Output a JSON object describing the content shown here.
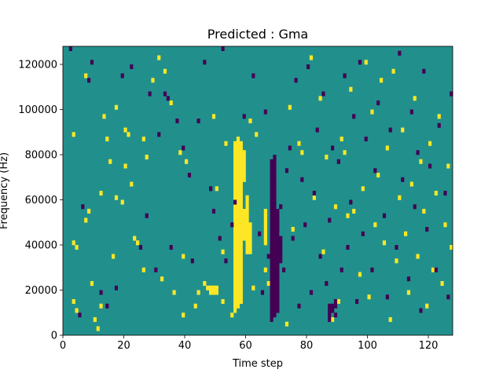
{
  "chart_data": {
    "type": "heatmap",
    "title": "Predicted : Gma",
    "xlabel": "Time step",
    "ylabel": "Frequency (Hz)",
    "xlim": [
      0,
      128
    ],
    "ylim": [
      0,
      128000
    ],
    "xticks": [
      "0",
      "20",
      "40",
      "60",
      "80",
      "100",
      "120"
    ],
    "yticks": [
      "0",
      "20000",
      "40000",
      "60000",
      "80000",
      "100000",
      "120000"
    ],
    "grid": false,
    "colormap": "viridis",
    "colors": {
      "background": "#21908d",
      "high": "#fde725",
      "low": "#440154"
    },
    "n_time_steps": 128,
    "n_freq_bins": 64,
    "bin_width_hz": 2000,
    "cells_high": [
      [
        3,
        7
      ],
      [
        3,
        20
      ],
      [
        3,
        44
      ],
      [
        4,
        19
      ],
      [
        4,
        5
      ],
      [
        7,
        57
      ],
      [
        7,
        25
      ],
      [
        8,
        27
      ],
      [
        9,
        11
      ],
      [
        10,
        3
      ],
      [
        11,
        1
      ],
      [
        12,
        6
      ],
      [
        12,
        31
      ],
      [
        13,
        48
      ],
      [
        14,
        43
      ],
      [
        15,
        38
      ],
      [
        16,
        17
      ],
      [
        17,
        30
      ],
      [
        17,
        50
      ],
      [
        19,
        29
      ],
      [
        20,
        37
      ],
      [
        20,
        45
      ],
      [
        21,
        44
      ],
      [
        22,
        33
      ],
      [
        23,
        21
      ],
      [
        24,
        20
      ],
      [
        26,
        14
      ],
      [
        26,
        43
      ],
      [
        27,
        39
      ],
      [
        29,
        56
      ],
      [
        31,
        61
      ],
      [
        32,
        12
      ],
      [
        33,
        58
      ],
      [
        35,
        51
      ],
      [
        36,
        9
      ],
      [
        38,
        40
      ],
      [
        39,
        4
      ],
      [
        39,
        17
      ],
      [
        40,
        38
      ],
      [
        43,
        6
      ],
      [
        44,
        9
      ],
      [
        46,
        11
      ],
      [
        49,
        48
      ],
      [
        50,
        32
      ],
      [
        52,
        18
      ],
      [
        52,
        7
      ],
      [
        53,
        42
      ],
      [
        55,
        4
      ],
      [
        57,
        37
      ],
      [
        60,
        30
      ],
      [
        61,
        47
      ],
      [
        62,
        10
      ],
      [
        63,
        44
      ],
      [
        66,
        14
      ],
      [
        67,
        11
      ],
      [
        68,
        38
      ],
      [
        69,
        34
      ],
      [
        70,
        22
      ],
      [
        73,
        2
      ],
      [
        74,
        50
      ],
      [
        75,
        23
      ],
      [
        77,
        42
      ],
      [
        78,
        40
      ],
      [
        81,
        61
      ],
      [
        82,
        30
      ],
      [
        84,
        52
      ],
      [
        85,
        18
      ],
      [
        86,
        39
      ],
      [
        88,
        3
      ],
      [
        89,
        28
      ],
      [
        90,
        7
      ],
      [
        91,
        43
      ],
      [
        92,
        40
      ],
      [
        93,
        26
      ],
      [
        94,
        54
      ],
      [
        95,
        27
      ],
      [
        97,
        13
      ],
      [
        98,
        32
      ],
      [
        99,
        60
      ],
      [
        100,
        8
      ],
      [
        101,
        49
      ],
      [
        102,
        24
      ],
      [
        103,
        35
      ],
      [
        104,
        56
      ],
      [
        105,
        20
      ],
      [
        106,
        41
      ],
      [
        107,
        3
      ],
      [
        108,
        58
      ],
      [
        109,
        16
      ],
      [
        110,
        30
      ],
      [
        111,
        45
      ],
      [
        112,
        22
      ],
      [
        113,
        9
      ],
      [
        114,
        33
      ],
      [
        115,
        52
      ],
      [
        116,
        17
      ],
      [
        117,
        38
      ],
      [
        118,
        27
      ],
      [
        119,
        6
      ],
      [
        120,
        42
      ],
      [
        121,
        14
      ],
      [
        122,
        31
      ],
      [
        123,
        48
      ],
      [
        124,
        11
      ],
      [
        125,
        24
      ],
      [
        126,
        37
      ],
      [
        127,
        19
      ],
      [
        56,
        5
      ],
      [
        56,
        6
      ],
      [
        56,
        7
      ],
      [
        56,
        8
      ],
      [
        56,
        9
      ],
      [
        56,
        10
      ],
      [
        56,
        11
      ],
      [
        56,
        12
      ],
      [
        56,
        13
      ],
      [
        56,
        14
      ],
      [
        56,
        15
      ],
      [
        56,
        16
      ],
      [
        56,
        17
      ],
      [
        56,
        18
      ],
      [
        56,
        19
      ],
      [
        56,
        20
      ],
      [
        56,
        21
      ],
      [
        56,
        22
      ],
      [
        56,
        23
      ],
      [
        56,
        24
      ],
      [
        56,
        25
      ],
      [
        56,
        26
      ],
      [
        56,
        27
      ],
      [
        56,
        28
      ],
      [
        56,
        29
      ],
      [
        56,
        30
      ],
      [
        56,
        31
      ],
      [
        56,
        32
      ],
      [
        56,
        33
      ],
      [
        56,
        34
      ],
      [
        56,
        35
      ],
      [
        56,
        36
      ],
      [
        56,
        37
      ],
      [
        56,
        38
      ],
      [
        56,
        39
      ],
      [
        56,
        40
      ],
      [
        56,
        41
      ],
      [
        56,
        42
      ],
      [
        57,
        6
      ],
      [
        57,
        7
      ],
      [
        57,
        8
      ],
      [
        57,
        9
      ],
      [
        57,
        10
      ],
      [
        57,
        11
      ],
      [
        57,
        12
      ],
      [
        57,
        13
      ],
      [
        57,
        14
      ],
      [
        57,
        15
      ],
      [
        57,
        16
      ],
      [
        57,
        17
      ],
      [
        57,
        18
      ],
      [
        57,
        19
      ],
      [
        57,
        20
      ],
      [
        57,
        21
      ],
      [
        57,
        22
      ],
      [
        57,
        23
      ],
      [
        57,
        24
      ],
      [
        57,
        25
      ],
      [
        57,
        26
      ],
      [
        57,
        27
      ],
      [
        57,
        28
      ],
      [
        57,
        29
      ],
      [
        57,
        30
      ],
      [
        57,
        31
      ],
      [
        57,
        32
      ],
      [
        57,
        33
      ],
      [
        57,
        34
      ],
      [
        57,
        35
      ],
      [
        57,
        36
      ],
      [
        57,
        37
      ],
      [
        57,
        38
      ],
      [
        57,
        39
      ],
      [
        57,
        40
      ],
      [
        57,
        41
      ],
      [
        57,
        42
      ],
      [
        57,
        43
      ],
      [
        58,
        7
      ],
      [
        58,
        8
      ],
      [
        58,
        9
      ],
      [
        58,
        10
      ],
      [
        58,
        11
      ],
      [
        58,
        12
      ],
      [
        58,
        13
      ],
      [
        58,
        14
      ],
      [
        58,
        15
      ],
      [
        58,
        16
      ],
      [
        58,
        17
      ],
      [
        58,
        18
      ],
      [
        58,
        19
      ],
      [
        58,
        20
      ],
      [
        58,
        21
      ],
      [
        58,
        22
      ],
      [
        58,
        23
      ],
      [
        58,
        24
      ],
      [
        58,
        25
      ],
      [
        58,
        26
      ],
      [
        58,
        27
      ],
      [
        58,
        28
      ],
      [
        58,
        29
      ],
      [
        58,
        30
      ],
      [
        58,
        31
      ],
      [
        58,
        32
      ],
      [
        58,
        33
      ],
      [
        58,
        34
      ],
      [
        58,
        35
      ],
      [
        58,
        36
      ],
      [
        58,
        37
      ],
      [
        58,
        38
      ],
      [
        58,
        39
      ],
      [
        58,
        40
      ],
      [
        58,
        41
      ],
      [
        58,
        42
      ],
      [
        59,
        21
      ],
      [
        59,
        22
      ],
      [
        59,
        23
      ],
      [
        59,
        24
      ],
      [
        59,
        25
      ],
      [
        59,
        26
      ],
      [
        59,
        27
      ],
      [
        59,
        34
      ],
      [
        59,
        35
      ],
      [
        59,
        36
      ],
      [
        59,
        37
      ],
      [
        59,
        38
      ],
      [
        59,
        39
      ],
      [
        59,
        40
      ],
      [
        60,
        18
      ],
      [
        60,
        19
      ],
      [
        60,
        20
      ],
      [
        60,
        21
      ],
      [
        60,
        22
      ],
      [
        60,
        23
      ],
      [
        60,
        24
      ],
      [
        60,
        25
      ],
      [
        60,
        26
      ],
      [
        60,
        27
      ],
      [
        60,
        28
      ],
      [
        60,
        29
      ],
      [
        61,
        18
      ],
      [
        61,
        19
      ],
      [
        61,
        20
      ],
      [
        61,
        21
      ],
      [
        61,
        22
      ],
      [
        61,
        23
      ],
      [
        61,
        24
      ],
      [
        66,
        20
      ],
      [
        66,
        21
      ],
      [
        66,
        22
      ],
      [
        66,
        23
      ],
      [
        66,
        24
      ],
      [
        66,
        25
      ],
      [
        66,
        26
      ],
      [
        66,
        27
      ],
      [
        47,
        10
      ],
      [
        48,
        9
      ],
      [
        48,
        10
      ],
      [
        49,
        9
      ],
      [
        49,
        10
      ],
      [
        50,
        9
      ],
      [
        50,
        10
      ]
    ],
    "cells_low": [
      [
        2,
        63
      ],
      [
        5,
        4
      ],
      [
        6,
        28
      ],
      [
        8,
        56
      ],
      [
        9,
        60
      ],
      [
        12,
        9
      ],
      [
        14,
        6
      ],
      [
        17,
        10
      ],
      [
        19,
        57
      ],
      [
        22,
        59
      ],
      [
        25,
        19
      ],
      [
        27,
        26
      ],
      [
        28,
        53
      ],
      [
        30,
        14
      ],
      [
        31,
        44
      ],
      [
        33,
        53
      ],
      [
        34,
        52
      ],
      [
        35,
        19
      ],
      [
        37,
        47
      ],
      [
        39,
        41
      ],
      [
        41,
        35
      ],
      [
        42,
        16
      ],
      [
        44,
        47
      ],
      [
        46,
        60
      ],
      [
        48,
        32
      ],
      [
        49,
        27
      ],
      [
        51,
        21
      ],
      [
        52,
        63
      ],
      [
        53,
        16
      ],
      [
        55,
        24
      ],
      [
        56,
        29
      ],
      [
        59,
        48
      ],
      [
        62,
        57
      ],
      [
        64,
        22
      ],
      [
        65,
        9
      ],
      [
        66,
        49
      ],
      [
        67,
        17
      ],
      [
        70,
        18
      ],
      [
        71,
        28
      ],
      [
        72,
        14
      ],
      [
        73,
        36
      ],
      [
        74,
        41
      ],
      [
        75,
        21
      ],
      [
        76,
        56
      ],
      [
        77,
        6
      ],
      [
        78,
        34
      ],
      [
        79,
        24
      ],
      [
        80,
        59
      ],
      [
        81,
        9
      ],
      [
        82,
        31
      ],
      [
        83,
        45
      ],
      [
        84,
        17
      ],
      [
        85,
        53
      ],
      [
        86,
        11
      ],
      [
        87,
        25
      ],
      [
        88,
        41
      ],
      [
        89,
        4
      ],
      [
        90,
        38
      ],
      [
        91,
        14
      ],
      [
        92,
        57
      ],
      [
        93,
        19
      ],
      [
        94,
        29
      ],
      [
        95,
        48
      ],
      [
        96,
        7
      ],
      [
        97,
        60
      ],
      [
        98,
        22
      ],
      [
        99,
        43
      ],
      [
        101,
        14
      ],
      [
        102,
        36
      ],
      [
        103,
        51
      ],
      [
        105,
        26
      ],
      [
        106,
        8
      ],
      [
        107,
        45
      ],
      [
        109,
        19
      ],
      [
        110,
        62
      ],
      [
        111,
        34
      ],
      [
        113,
        12
      ],
      [
        114,
        49
      ],
      [
        115,
        28
      ],
      [
        116,
        40
      ],
      [
        117,
        5
      ],
      [
        118,
        58
      ],
      [
        119,
        23
      ],
      [
        120,
        37
      ],
      [
        122,
        14
      ],
      [
        123,
        46
      ],
      [
        125,
        31
      ],
      [
        126,
        8
      ],
      [
        127,
        53
      ],
      [
        68,
        3
      ],
      [
        68,
        4
      ],
      [
        68,
        5
      ],
      [
        68,
        6
      ],
      [
        68,
        7
      ],
      [
        68,
        8
      ],
      [
        68,
        9
      ],
      [
        68,
        10
      ],
      [
        68,
        11
      ],
      [
        68,
        12
      ],
      [
        68,
        13
      ],
      [
        68,
        14
      ],
      [
        68,
        15
      ],
      [
        68,
        16
      ],
      [
        68,
        17
      ],
      [
        68,
        18
      ],
      [
        68,
        19
      ],
      [
        68,
        20
      ],
      [
        68,
        21
      ],
      [
        68,
        22
      ],
      [
        68,
        23
      ],
      [
        68,
        24
      ],
      [
        68,
        25
      ],
      [
        68,
        26
      ],
      [
        68,
        27
      ],
      [
        68,
        28
      ],
      [
        68,
        29
      ],
      [
        68,
        30
      ],
      [
        68,
        31
      ],
      [
        68,
        32
      ],
      [
        68,
        33
      ],
      [
        68,
        34
      ],
      [
        68,
        35
      ],
      [
        68,
        36
      ],
      [
        68,
        37
      ],
      [
        68,
        38
      ],
      [
        69,
        4
      ],
      [
        69,
        5
      ],
      [
        69,
        6
      ],
      [
        69,
        7
      ],
      [
        69,
        8
      ],
      [
        69,
        9
      ],
      [
        69,
        10
      ],
      [
        69,
        11
      ],
      [
        69,
        12
      ],
      [
        69,
        13
      ],
      [
        69,
        14
      ],
      [
        69,
        15
      ],
      [
        69,
        16
      ],
      [
        69,
        17
      ],
      [
        69,
        18
      ],
      [
        69,
        19
      ],
      [
        69,
        20
      ],
      [
        69,
        21
      ],
      [
        69,
        22
      ],
      [
        69,
        23
      ],
      [
        69,
        24
      ],
      [
        69,
        25
      ],
      [
        69,
        26
      ],
      [
        69,
        27
      ],
      [
        69,
        28
      ],
      [
        69,
        29
      ],
      [
        69,
        30
      ],
      [
        69,
        31
      ],
      [
        69,
        32
      ],
      [
        69,
        33
      ],
      [
        69,
        34
      ],
      [
        69,
        35
      ],
      [
        69,
        36
      ],
      [
        69,
        37
      ],
      [
        69,
        38
      ],
      [
        69,
        39
      ],
      [
        70,
        5
      ],
      [
        70,
        6
      ],
      [
        70,
        7
      ],
      [
        70,
        8
      ],
      [
        70,
        9
      ],
      [
        70,
        10
      ],
      [
        70,
        11
      ],
      [
        70,
        12
      ],
      [
        70,
        13
      ],
      [
        70,
        14
      ],
      [
        70,
        15
      ],
      [
        70,
        16
      ],
      [
        70,
        17
      ],
      [
        70,
        18
      ],
      [
        70,
        19
      ],
      [
        70,
        20
      ],
      [
        70,
        21
      ],
      [
        70,
        22
      ],
      [
        70,
        23
      ],
      [
        70,
        24
      ],
      [
        70,
        25
      ],
      [
        70,
        26
      ],
      [
        70,
        27
      ],
      [
        71,
        16
      ],
      [
        71,
        17
      ],
      [
        71,
        18
      ],
      [
        71,
        19
      ],
      [
        71,
        20
      ],
      [
        71,
        21
      ],
      [
        87,
        3
      ],
      [
        87,
        4
      ],
      [
        87,
        5
      ],
      [
        87,
        6
      ],
      [
        88,
        5
      ],
      [
        88,
        6
      ],
      [
        89,
        6
      ],
      [
        89,
        7
      ]
    ]
  }
}
